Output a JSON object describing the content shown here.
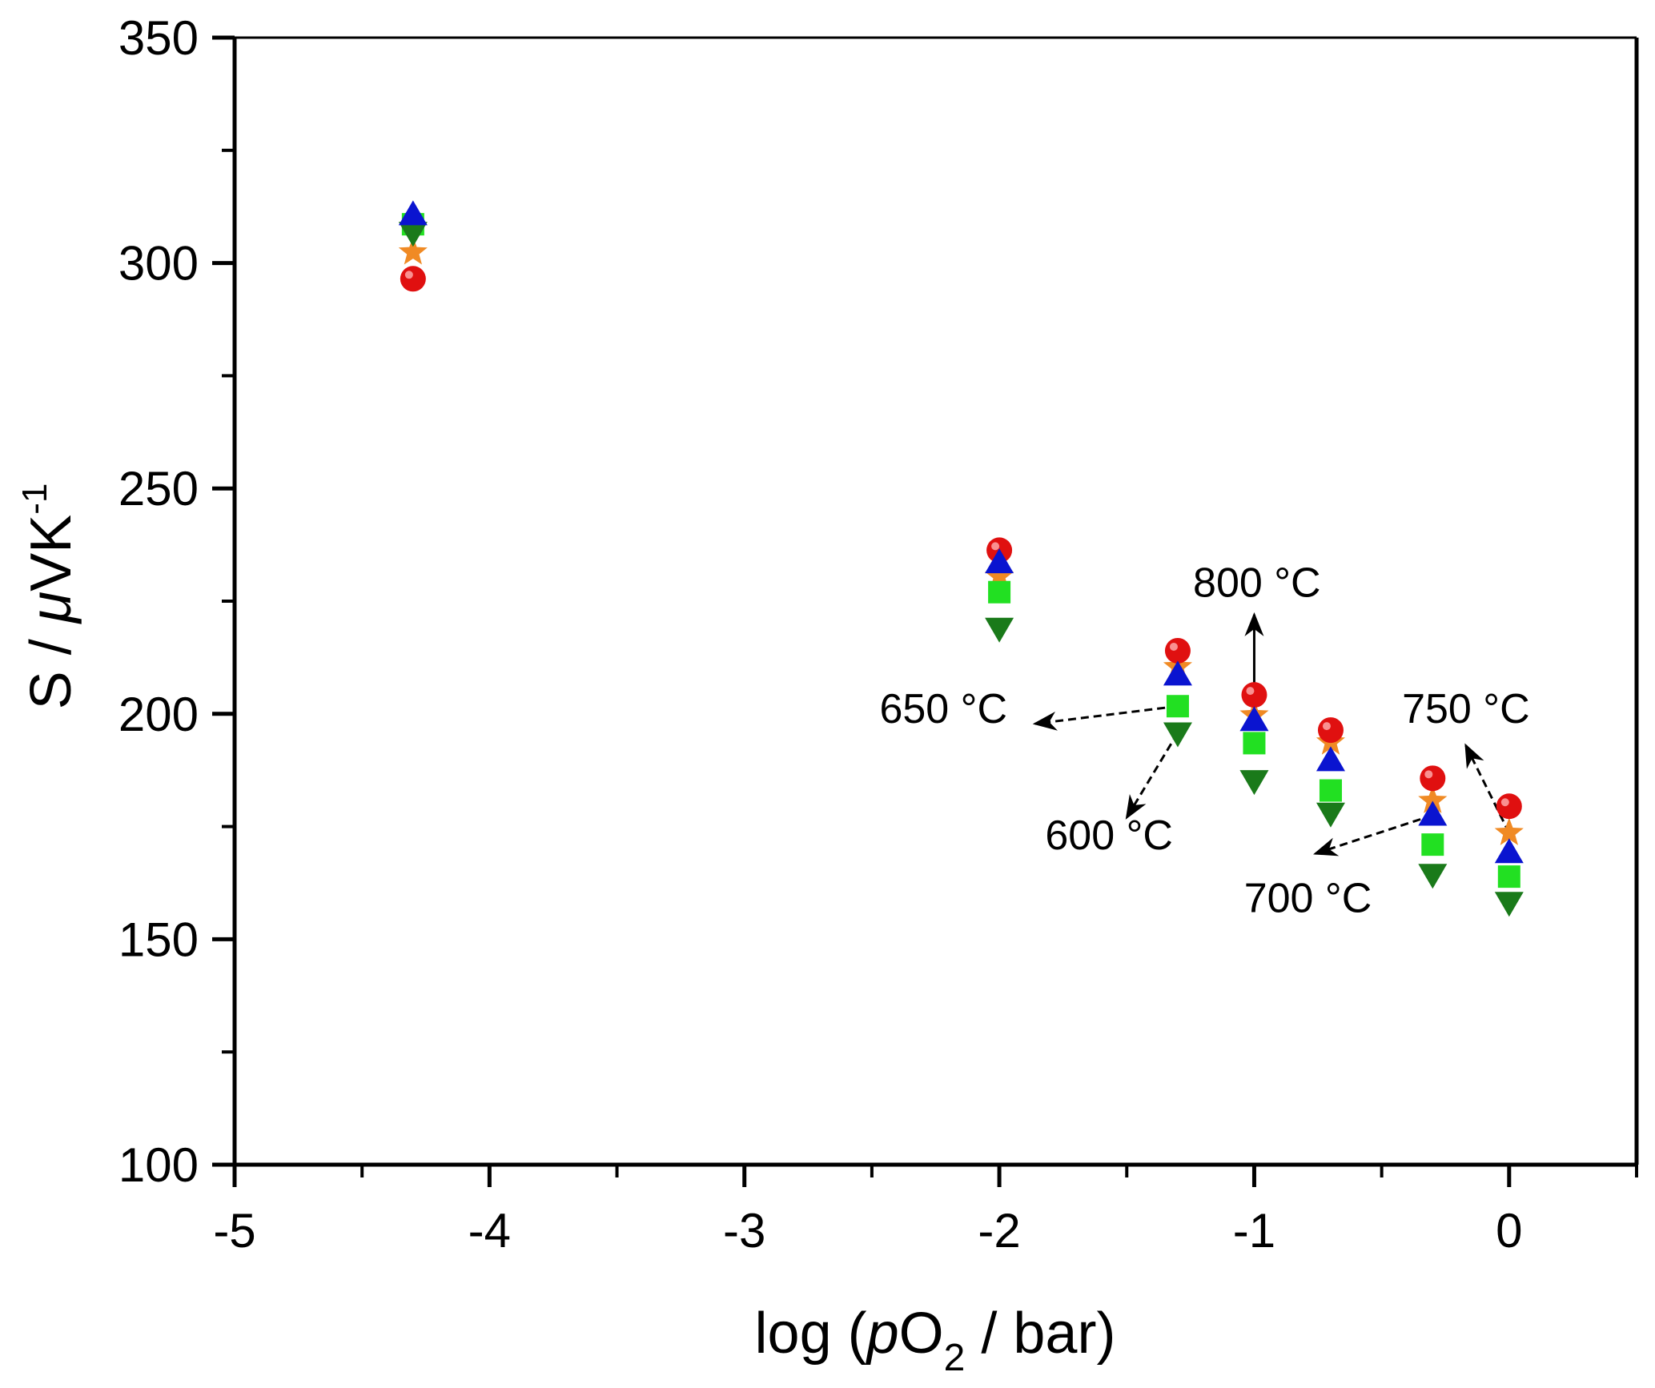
{
  "chart_data": {
    "type": "scatter",
    "title": "",
    "xlabel": {
      "prefix": "log (",
      "italic": "p",
      "main": "O",
      "sub": "2",
      "suffix": " / bar)"
    },
    "ylabel": {
      "main": "S / ",
      "italic": "μ",
      "rest": "VK",
      "sup": "-1"
    },
    "xlim": [
      -5,
      0.5
    ],
    "ylim": [
      100,
      350
    ],
    "x_ticks": [
      -5,
      -4,
      -3,
      -2,
      -1,
      0
    ],
    "x_tick_labels": [
      "-5",
      "-4",
      "-3",
      "-2",
      "-1",
      "0"
    ],
    "x_minor_step": 0.5,
    "y_ticks": [
      100,
      150,
      200,
      250,
      300,
      350
    ],
    "y_tick_labels": [
      "100",
      "150",
      "200",
      "250",
      "300",
      "350"
    ],
    "y_minor_step": 25,
    "grid": false,
    "legend": "none (inline annotations)",
    "x": [
      -4.3,
      -2,
      -1.3,
      -1,
      -0.7,
      -0.3,
      0
    ],
    "series": [
      {
        "name": "600 °C",
        "marker": "triangle-down",
        "color": "#1a7a1a",
        "values": [
          306.8,
          219.0,
          195.8,
          185.2,
          178.0,
          164.4,
          158.2
        ]
      },
      {
        "name": "650 °C",
        "marker": "square",
        "color": "#22e022",
        "values": [
          308.6,
          227.0,
          201.7,
          193.5,
          183.0,
          171.0,
          163.9
        ]
      },
      {
        "name": "700 °C",
        "marker": "triangle-up",
        "color": "#0a14d0",
        "values": [
          310.7,
          233.5,
          208.6,
          198.5,
          189.6,
          177.5,
          169.2
        ]
      },
      {
        "name": "750 °C",
        "marker": "star",
        "color": "#f08a24",
        "values": [
          302.4,
          230.5,
          210.4,
          199.7,
          193.7,
          180.7,
          173.6
        ]
      },
      {
        "name": "800 °C",
        "marker": "circle",
        "color": "#e01010",
        "values": [
          296.5,
          236.3,
          214.0,
          204.2,
          196.4,
          185.7,
          179.5
        ]
      }
    ],
    "annotations": [
      {
        "text": "800 °C",
        "series": "800 °C",
        "point_x": -1,
        "label_x": -1.24,
        "label_y": 226,
        "arrow_to": [
          -1,
          222
        ]
      },
      {
        "text": "650 °C",
        "series": "650 °C",
        "point_x": -1.3,
        "label_x": -2.47,
        "label_y": 198,
        "arrow_to": [
          -1.86,
          197.8
        ]
      },
      {
        "text": "600 °C",
        "series": "600 °C",
        "point_x": -1.3,
        "label_x": -1.82,
        "label_y": 170,
        "arrow_to": [
          -1.5,
          177
        ]
      },
      {
        "text": "700 °C",
        "series": "700 °C",
        "point_x": -0.3,
        "label_x": -1.04,
        "label_y": 156,
        "arrow_to": [
          -0.76,
          169
        ]
      },
      {
        "text": "750 °C",
        "series": "750 °C",
        "point_x": 0,
        "label_x": -0.42,
        "label_y": 198,
        "arrow_to": [
          -0.17,
          193
        ]
      }
    ]
  }
}
